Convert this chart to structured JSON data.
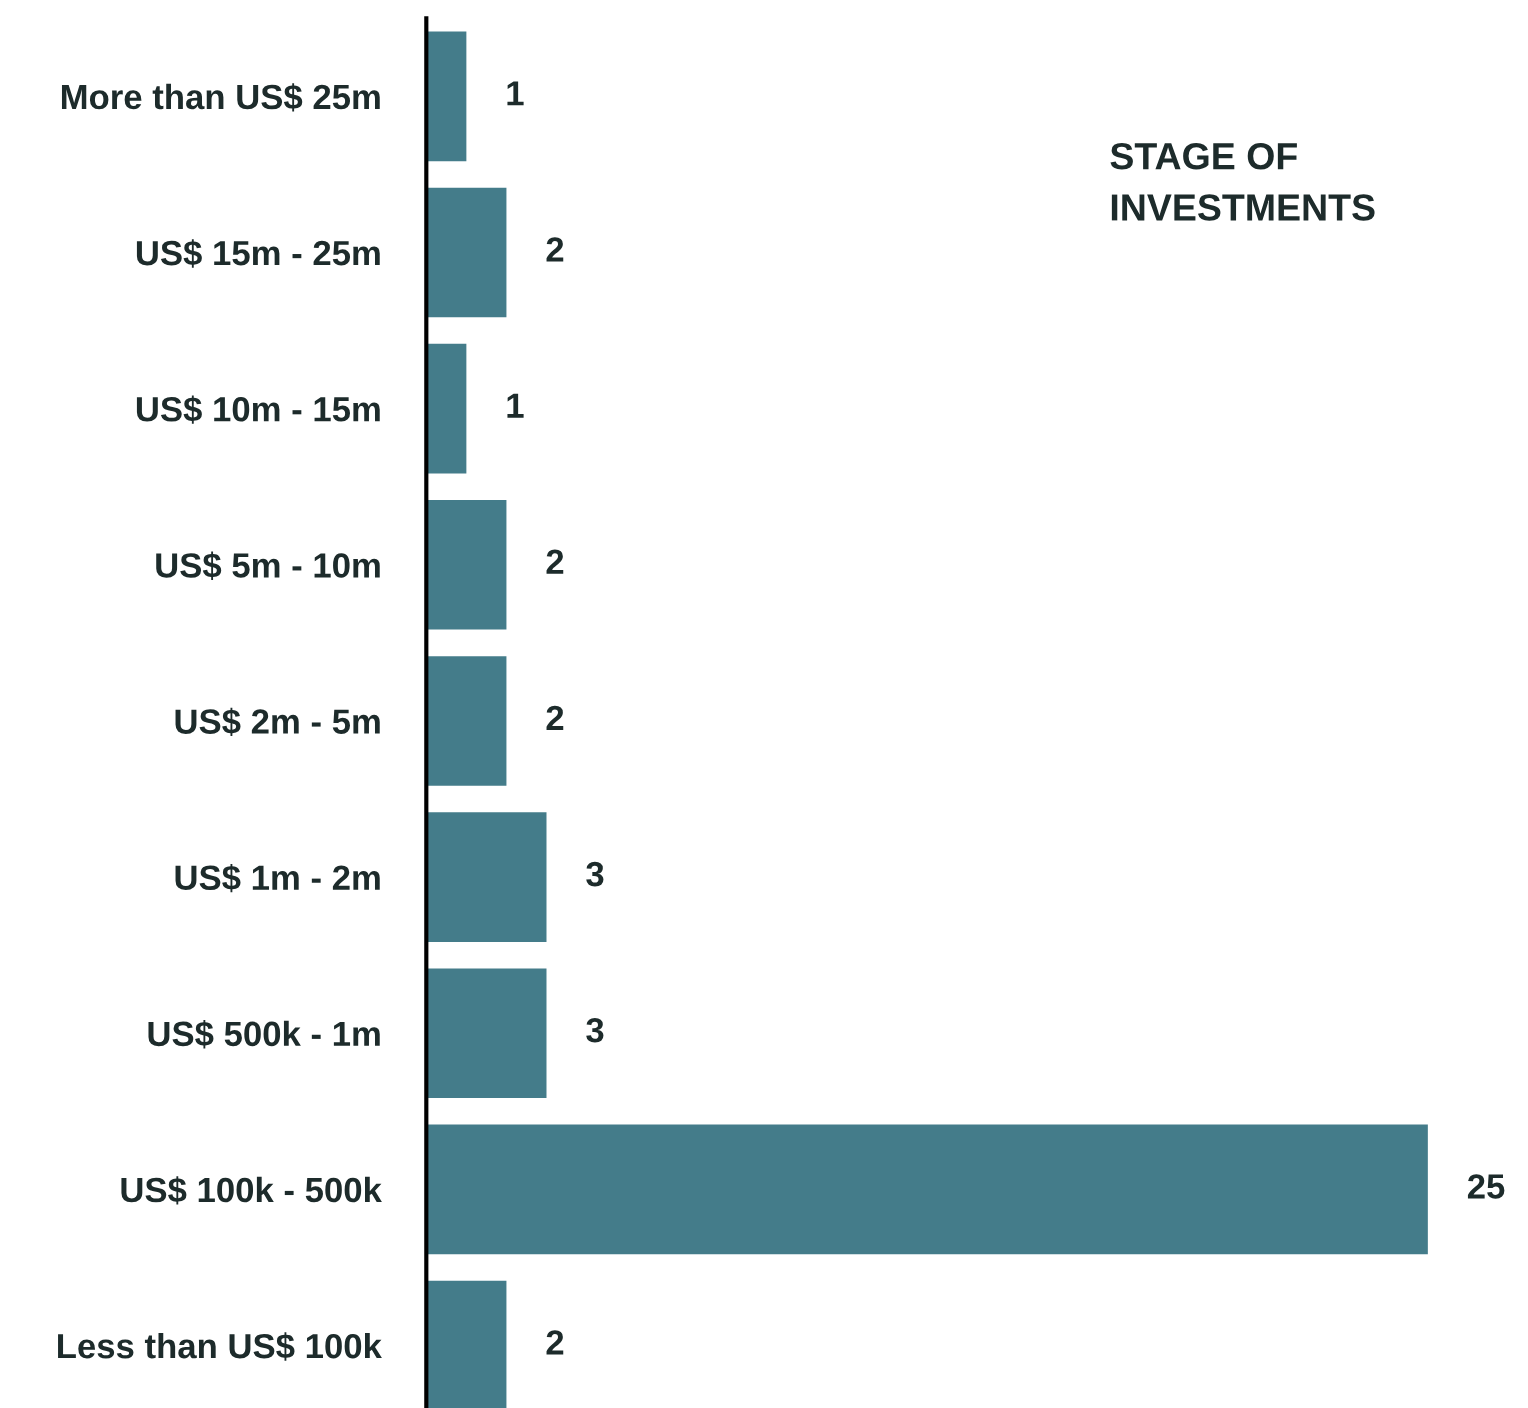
{
  "chart_data": {
    "type": "bar",
    "orientation": "horizontal",
    "title": "STAGE OF\nINVESTMENTS",
    "categories": [
      "More than US$ 25m",
      "US$ 15m - 25m",
      "US$ 10m - 15m",
      "US$ 5m - 10m",
      "US$ 2m - 5m",
      "US$ 1m - 2m",
      "US$ 500k - 1m",
      "US$ 100k - 500k",
      "Less than US$ 100k"
    ],
    "values": [
      1,
      2,
      1,
      2,
      2,
      3,
      3,
      25,
      2
    ],
    "color": "#447c8a",
    "data_labels": true,
    "grid": false,
    "legend": false
  }
}
